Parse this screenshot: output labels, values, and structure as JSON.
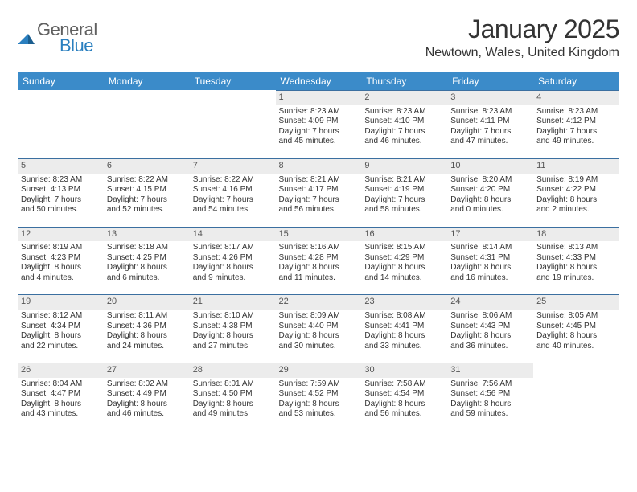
{
  "brand": {
    "word1": "General",
    "word2": "Blue"
  },
  "title": "January 2025",
  "location": "Newtown, Wales, United Kingdom",
  "colors": {
    "header_bg": "#3b8bc9",
    "header_fg": "#ffffff",
    "daynum_bg": "#ececec",
    "rule": "#3b6fa0",
    "logo_gray": "#606060",
    "logo_blue": "#2a7fbf"
  },
  "day_headers": [
    "Sunday",
    "Monday",
    "Tuesday",
    "Wednesday",
    "Thursday",
    "Friday",
    "Saturday"
  ],
  "weeks": [
    [
      null,
      null,
      null,
      {
        "n": "1",
        "sr": "Sunrise: 8:23 AM",
        "ss": "Sunset: 4:09 PM",
        "dl1": "Daylight: 7 hours",
        "dl2": "and 45 minutes."
      },
      {
        "n": "2",
        "sr": "Sunrise: 8:23 AM",
        "ss": "Sunset: 4:10 PM",
        "dl1": "Daylight: 7 hours",
        "dl2": "and 46 minutes."
      },
      {
        "n": "3",
        "sr": "Sunrise: 8:23 AM",
        "ss": "Sunset: 4:11 PM",
        "dl1": "Daylight: 7 hours",
        "dl2": "and 47 minutes."
      },
      {
        "n": "4",
        "sr": "Sunrise: 8:23 AM",
        "ss": "Sunset: 4:12 PM",
        "dl1": "Daylight: 7 hours",
        "dl2": "and 49 minutes."
      }
    ],
    [
      {
        "n": "5",
        "sr": "Sunrise: 8:23 AM",
        "ss": "Sunset: 4:13 PM",
        "dl1": "Daylight: 7 hours",
        "dl2": "and 50 minutes."
      },
      {
        "n": "6",
        "sr": "Sunrise: 8:22 AM",
        "ss": "Sunset: 4:15 PM",
        "dl1": "Daylight: 7 hours",
        "dl2": "and 52 minutes."
      },
      {
        "n": "7",
        "sr": "Sunrise: 8:22 AM",
        "ss": "Sunset: 4:16 PM",
        "dl1": "Daylight: 7 hours",
        "dl2": "and 54 minutes."
      },
      {
        "n": "8",
        "sr": "Sunrise: 8:21 AM",
        "ss": "Sunset: 4:17 PM",
        "dl1": "Daylight: 7 hours",
        "dl2": "and 56 minutes."
      },
      {
        "n": "9",
        "sr": "Sunrise: 8:21 AM",
        "ss": "Sunset: 4:19 PM",
        "dl1": "Daylight: 7 hours",
        "dl2": "and 58 minutes."
      },
      {
        "n": "10",
        "sr": "Sunrise: 8:20 AM",
        "ss": "Sunset: 4:20 PM",
        "dl1": "Daylight: 8 hours",
        "dl2": "and 0 minutes."
      },
      {
        "n": "11",
        "sr": "Sunrise: 8:19 AM",
        "ss": "Sunset: 4:22 PM",
        "dl1": "Daylight: 8 hours",
        "dl2": "and 2 minutes."
      }
    ],
    [
      {
        "n": "12",
        "sr": "Sunrise: 8:19 AM",
        "ss": "Sunset: 4:23 PM",
        "dl1": "Daylight: 8 hours",
        "dl2": "and 4 minutes."
      },
      {
        "n": "13",
        "sr": "Sunrise: 8:18 AM",
        "ss": "Sunset: 4:25 PM",
        "dl1": "Daylight: 8 hours",
        "dl2": "and 6 minutes."
      },
      {
        "n": "14",
        "sr": "Sunrise: 8:17 AM",
        "ss": "Sunset: 4:26 PM",
        "dl1": "Daylight: 8 hours",
        "dl2": "and 9 minutes."
      },
      {
        "n": "15",
        "sr": "Sunrise: 8:16 AM",
        "ss": "Sunset: 4:28 PM",
        "dl1": "Daylight: 8 hours",
        "dl2": "and 11 minutes."
      },
      {
        "n": "16",
        "sr": "Sunrise: 8:15 AM",
        "ss": "Sunset: 4:29 PM",
        "dl1": "Daylight: 8 hours",
        "dl2": "and 14 minutes."
      },
      {
        "n": "17",
        "sr": "Sunrise: 8:14 AM",
        "ss": "Sunset: 4:31 PM",
        "dl1": "Daylight: 8 hours",
        "dl2": "and 16 minutes."
      },
      {
        "n": "18",
        "sr": "Sunrise: 8:13 AM",
        "ss": "Sunset: 4:33 PM",
        "dl1": "Daylight: 8 hours",
        "dl2": "and 19 minutes."
      }
    ],
    [
      {
        "n": "19",
        "sr": "Sunrise: 8:12 AM",
        "ss": "Sunset: 4:34 PM",
        "dl1": "Daylight: 8 hours",
        "dl2": "and 22 minutes."
      },
      {
        "n": "20",
        "sr": "Sunrise: 8:11 AM",
        "ss": "Sunset: 4:36 PM",
        "dl1": "Daylight: 8 hours",
        "dl2": "and 24 minutes."
      },
      {
        "n": "21",
        "sr": "Sunrise: 8:10 AM",
        "ss": "Sunset: 4:38 PM",
        "dl1": "Daylight: 8 hours",
        "dl2": "and 27 minutes."
      },
      {
        "n": "22",
        "sr": "Sunrise: 8:09 AM",
        "ss": "Sunset: 4:40 PM",
        "dl1": "Daylight: 8 hours",
        "dl2": "and 30 minutes."
      },
      {
        "n": "23",
        "sr": "Sunrise: 8:08 AM",
        "ss": "Sunset: 4:41 PM",
        "dl1": "Daylight: 8 hours",
        "dl2": "and 33 minutes."
      },
      {
        "n": "24",
        "sr": "Sunrise: 8:06 AM",
        "ss": "Sunset: 4:43 PM",
        "dl1": "Daylight: 8 hours",
        "dl2": "and 36 minutes."
      },
      {
        "n": "25",
        "sr": "Sunrise: 8:05 AM",
        "ss": "Sunset: 4:45 PM",
        "dl1": "Daylight: 8 hours",
        "dl2": "and 40 minutes."
      }
    ],
    [
      {
        "n": "26",
        "sr": "Sunrise: 8:04 AM",
        "ss": "Sunset: 4:47 PM",
        "dl1": "Daylight: 8 hours",
        "dl2": "and 43 minutes."
      },
      {
        "n": "27",
        "sr": "Sunrise: 8:02 AM",
        "ss": "Sunset: 4:49 PM",
        "dl1": "Daylight: 8 hours",
        "dl2": "and 46 minutes."
      },
      {
        "n": "28",
        "sr": "Sunrise: 8:01 AM",
        "ss": "Sunset: 4:50 PM",
        "dl1": "Daylight: 8 hours",
        "dl2": "and 49 minutes."
      },
      {
        "n": "29",
        "sr": "Sunrise: 7:59 AM",
        "ss": "Sunset: 4:52 PM",
        "dl1": "Daylight: 8 hours",
        "dl2": "and 53 minutes."
      },
      {
        "n": "30",
        "sr": "Sunrise: 7:58 AM",
        "ss": "Sunset: 4:54 PM",
        "dl1": "Daylight: 8 hours",
        "dl2": "and 56 minutes."
      },
      {
        "n": "31",
        "sr": "Sunrise: 7:56 AM",
        "ss": "Sunset: 4:56 PM",
        "dl1": "Daylight: 8 hours",
        "dl2": "and 59 minutes."
      },
      null
    ]
  ]
}
